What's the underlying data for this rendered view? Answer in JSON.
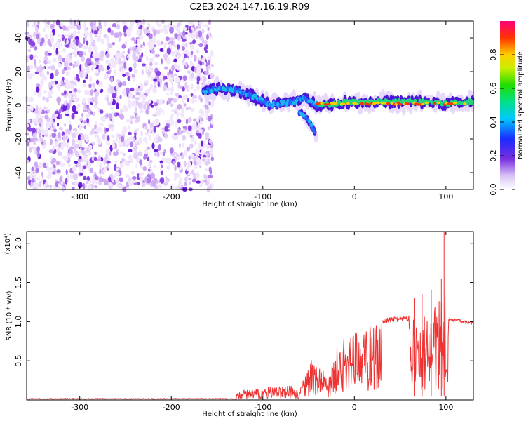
{
  "title": "C2E3.2024.147.16.19.R09",
  "chart_data": [
    {
      "type": "heatmap",
      "xlabel": "Height of straight line (km)",
      "ylabel": "Frequency (Hz)",
      "xlim": [
        -358,
        130
      ],
      "ylim": [
        -50,
        50
      ],
      "xticks": [
        -300,
        -200,
        -100,
        0,
        100
      ],
      "yticks": [
        -40,
        -20,
        0,
        20,
        40
      ],
      "noise_region_x": [
        -358,
        -155
      ],
      "ridge": [
        {
          "x": -165,
          "y": 8
        },
        {
          "x": -150,
          "y": 10
        },
        {
          "x": -130,
          "y": 9
        },
        {
          "x": -110,
          "y": 5
        },
        {
          "x": -90,
          "y": 0
        },
        {
          "x": -70,
          "y": 2
        },
        {
          "x": -55,
          "y": 4
        },
        {
          "x": -40,
          "y": 0
        },
        {
          "x": -20,
          "y": 1
        },
        {
          "x": 0,
          "y": 2
        },
        {
          "x": 40,
          "y": 2
        },
        {
          "x": 80,
          "y": 2
        },
        {
          "x": 100,
          "y": 1
        },
        {
          "x": 130,
          "y": 2
        }
      ],
      "branch": [
        {
          "x": -60,
          "y": -4
        },
        {
          "x": -50,
          "y": -9
        },
        {
          "x": -45,
          "y": -14
        },
        {
          "x": -42,
          "y": -17
        }
      ],
      "colorbar": {
        "label": "Normalized spectral amplitude",
        "ticks": [
          0.0,
          0.2,
          0.4,
          0.6,
          0.8
        ],
        "range": [
          0,
          1
        ]
      }
    },
    {
      "type": "line",
      "xlabel": "Height of straight line (km)",
      "ylabel": "SNR (10 * v/v)",
      "yscale_note": "(x10⁴)",
      "xlim": [
        -358,
        130
      ],
      "ylim": [
        0,
        2.15
      ],
      "xticks": [
        -300,
        -200,
        -100,
        0,
        100
      ],
      "yticks": [
        0.5,
        1.0,
        1.5,
        2.0
      ],
      "color": "#ee3333",
      "envelope": [
        {
          "x": -358,
          "y": 0.02
        },
        {
          "x": -130,
          "y": 0.02
        },
        {
          "x": -128,
          "y": 0.12
        },
        {
          "x": -100,
          "y": 0.15
        },
        {
          "x": -75,
          "y": 0.2
        },
        {
          "x": -60,
          "y": 0.15
        },
        {
          "x": -52,
          "y": 0.35
        },
        {
          "x": -45,
          "y": 0.6
        },
        {
          "x": -35,
          "y": 0.4
        },
        {
          "x": -28,
          "y": 0.3
        },
        {
          "x": -20,
          "y": 0.7
        },
        {
          "x": -10,
          "y": 0.8
        },
        {
          "x": 0,
          "y": 0.85
        },
        {
          "x": 15,
          "y": 0.95
        },
        {
          "x": 30,
          "y": 1.05
        },
        {
          "x": 50,
          "y": 1.08
        },
        {
          "x": 70,
          "y": 1.08
        },
        {
          "x": 80,
          "y": 1.15
        },
        {
          "x": 90,
          "y": 1.3
        },
        {
          "x": 100,
          "y": 1.5
        },
        {
          "x": 103,
          "y": 1.05
        },
        {
          "x": 130,
          "y": 1.0
        }
      ],
      "spikes": [
        {
          "x": 98,
          "y": 2.15
        },
        {
          "x": 95,
          "y": 1.55
        },
        {
          "x": 84,
          "y": 1.4
        },
        {
          "x": 74,
          "y": 1.35
        },
        {
          "x": 66,
          "y": 1.3
        }
      ]
    }
  ]
}
